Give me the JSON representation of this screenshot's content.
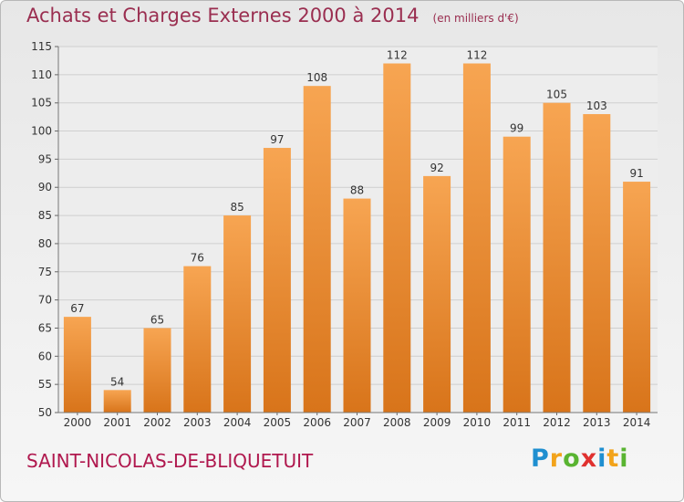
{
  "header": {
    "title": "Achats et Charges Externes 2000 à 2014",
    "unit": "(en milliers d'€)"
  },
  "footer": {
    "commune": "SAINT-NICOLAS-DE-BLIQUETUIT",
    "brand_letters": [
      {
        "ch": "P",
        "color": "#1f8fd0"
      },
      {
        "ch": "r",
        "color": "#f2a31b"
      },
      {
        "ch": "o",
        "color": "#59b431"
      },
      {
        "ch": "x",
        "color": "#e0312f"
      },
      {
        "ch": "i",
        "color": "#1f8fd0"
      },
      {
        "ch": "t",
        "color": "#f2a31b"
      },
      {
        "ch": "i",
        "color": "#59b431"
      }
    ]
  },
  "colors": {
    "bar_top": "#f7a552",
    "bar_bottom": "#d8741a",
    "grid": "#cfcfcf",
    "plot_bg": "#ededed"
  },
  "chart_data": {
    "type": "bar",
    "categories": [
      "2000",
      "2001",
      "2002",
      "2003",
      "2004",
      "2005",
      "2006",
      "2007",
      "2008",
      "2009",
      "2010",
      "2011",
      "2012",
      "2013",
      "2014"
    ],
    "values": [
      67,
      54,
      65,
      76,
      85,
      97,
      108,
      88,
      112,
      92,
      112,
      99,
      105,
      103,
      91
    ],
    "title": "Achats et Charges Externes 2000 à 2014",
    "ylim": [
      50,
      115
    ],
    "yticks": [
      50,
      55,
      60,
      65,
      70,
      75,
      80,
      85,
      90,
      95,
      100,
      105,
      110,
      115
    ],
    "grid": true,
    "legend": "none"
  }
}
